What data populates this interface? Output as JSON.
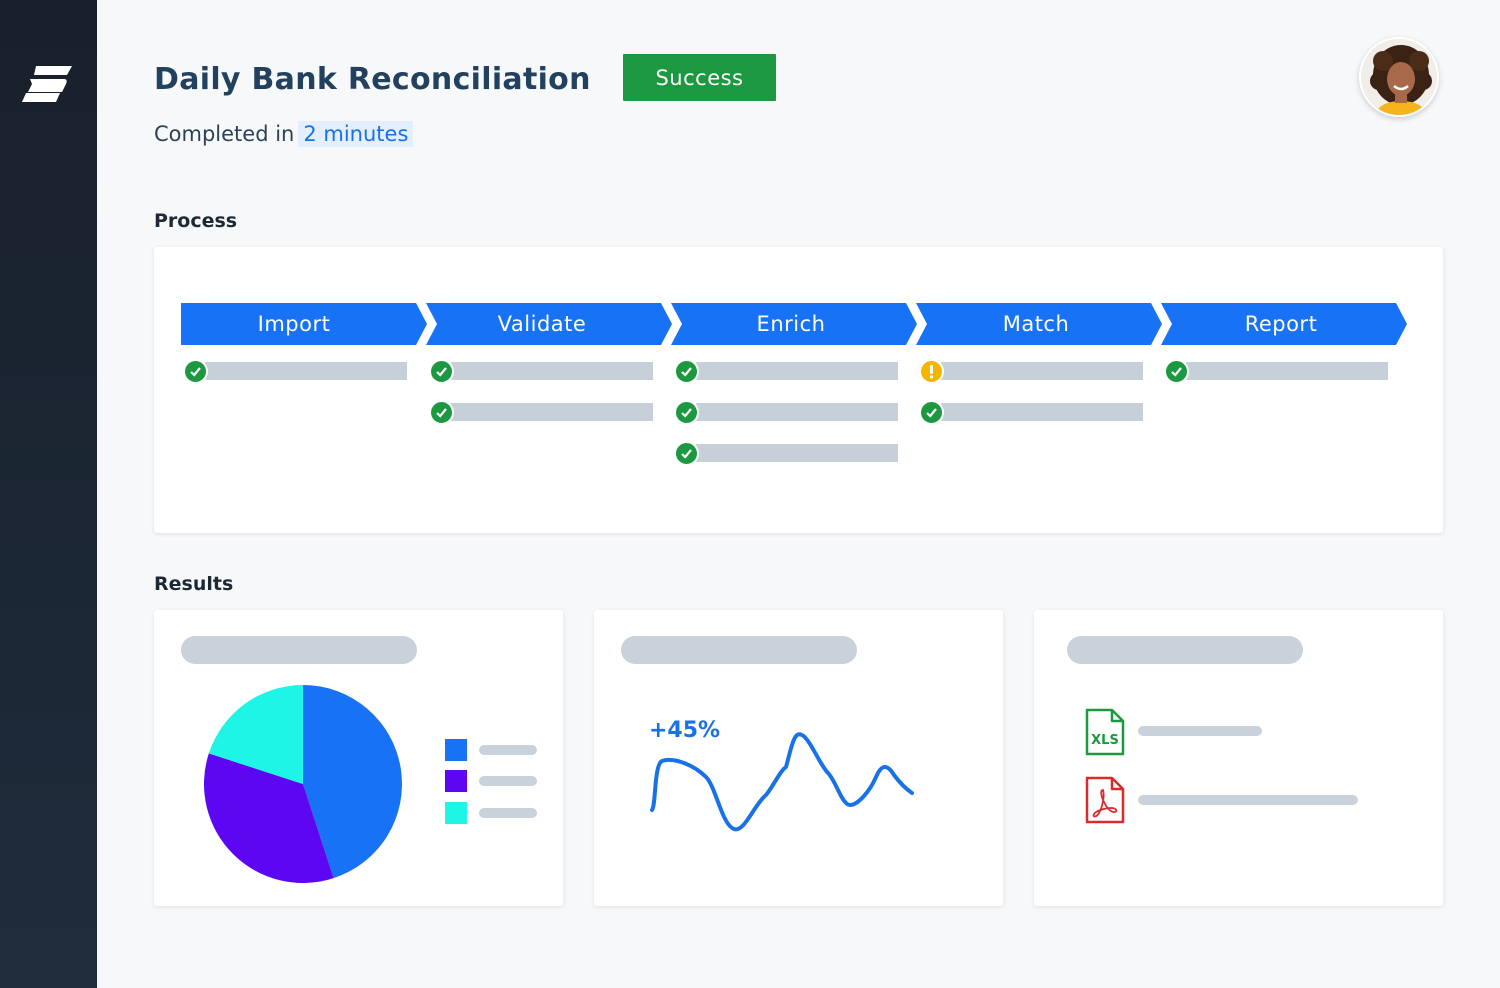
{
  "page": {
    "title": "Daily Bank Reconciliation",
    "status": "Success",
    "subtitle_prefix": "Completed in",
    "duration": "2 minutes"
  },
  "process": {
    "label": "Process",
    "steps": [
      {
        "label": "Import",
        "tasks": [
          "success"
        ]
      },
      {
        "label": "Validate",
        "tasks": [
          "success",
          "success"
        ]
      },
      {
        "label": "Enrich",
        "tasks": [
          "success",
          "success",
          "success"
        ]
      },
      {
        "label": "Match",
        "tasks": [
          "warning",
          "success"
        ]
      },
      {
        "label": "Report",
        "tasks": [
          "success"
        ]
      }
    ]
  },
  "results": {
    "label": "Results",
    "pie": {
      "slices": [
        {
          "color": "#1872f5",
          "fraction": 0.45
        },
        {
          "color": "#5c06f2",
          "fraction": 0.35
        },
        {
          "color": "#1ff5e6",
          "fraction": 0.2
        }
      ]
    },
    "trend": {
      "label": "+45%",
      "color": "#1872e6"
    },
    "files": [
      {
        "type": "XLS",
        "icon": "xls-file-icon",
        "color": "#1c9940"
      },
      {
        "type": "PDF",
        "icon": "pdf-file-icon",
        "color": "#d92b2b"
      }
    ]
  },
  "colors": {
    "accent": "#1872f5",
    "success": "#1c9940",
    "warning": "#f4b400",
    "sidebar": "#1b2532"
  }
}
